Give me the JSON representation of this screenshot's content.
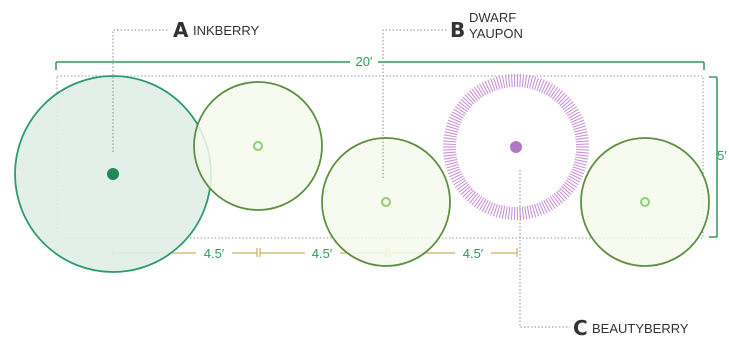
{
  "labels": {
    "a": {
      "letter": "A",
      "name": "INKBERRY"
    },
    "b": {
      "letter": "B",
      "name_line1": "DWARF",
      "name_line2": "YAUPON"
    },
    "c": {
      "letter": "C",
      "name": "BEAUTYBERRY"
    }
  },
  "dimensions": {
    "width": "20′",
    "depth": "5′",
    "spacing": [
      "4.5′",
      "4.5′",
      "4.5′"
    ]
  },
  "colors": {
    "dimension": "#2f9a5a",
    "inkberry_stroke": "#2e9a72",
    "inkberry_fill": "#dfeee7",
    "yaupon_stroke": "#5e9040",
    "yaupon_fill": "#f6f9ec",
    "yaupon_center": "#8fcf70",
    "beautyberry": "#b277c3",
    "guide": "#8b8b8b",
    "spacing_line": "#c9b45c",
    "label_text": "#333333"
  }
}
